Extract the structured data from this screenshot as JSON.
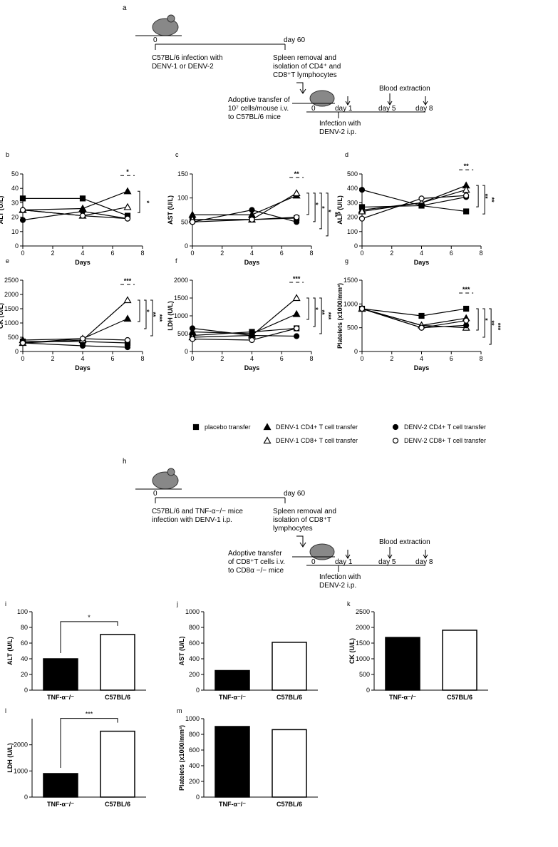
{
  "diagram_a": {
    "label": "a",
    "t0": "0",
    "t60": "day 60",
    "inf1": "C57BL/6 infection with",
    "inf2": "DENV-1 or DENV-2",
    "sp1": "Spleen removal and",
    "sp2": "isolation of  CD4⁺ and",
    "sp3": "CD8⁺T lymphocytes",
    "ad1": "Adoptive transfer of",
    "ad2": "10⁷ cells/mouse i.v.",
    "ad3": "to C57BL/6 mice",
    "blood": "Blood extraction",
    "d0": "0",
    "d1": "day 1",
    "d5": "day 5",
    "d8": "day 8",
    "in1": "Infection with",
    "in2": "DENV-2 i.p."
  },
  "diagram_h": {
    "label": "h",
    "t0": "0",
    "t60": "day 60",
    "inf1": "C57BL/6 and TNF-α−/− mice",
    "inf2": "infection with DENV-1 i.p.",
    "sp1": "Spleen removal and",
    "sp2": "isolation of  CD8⁺T",
    "sp3": "lymphocytes",
    "ad1": "Adoptive transfer",
    "ad2": "of CD8⁺T cells i.v.",
    "ad3": "to CD8α −/− mice",
    "blood": "Blood extraction",
    "d0": "0",
    "d1": "day 1",
    "d5": "day 5",
    "d8": "day 8",
    "in1": "Infection with",
    "in2": "DENV-2 i.p."
  },
  "legend": [
    {
      "name": "placebo transfer",
      "marker": "square"
    },
    {
      "name": "DENV-1 CD4+ T cell transfer",
      "marker": "triangle"
    },
    {
      "name": "DENV-1 CD8+ T cell transfer",
      "marker": "triangle-open"
    },
    {
      "name": "DENV-2 CD4+ T cell transfer",
      "marker": "circle"
    },
    {
      "name": "DENV-2 CD8+ T cell transfer",
      "marker": "circle-open"
    }
  ],
  "chart_data": [
    {
      "type": "line",
      "panel": "b",
      "ylabel": "ALT (U/L)",
      "xlabel": "Days",
      "x": [
        0,
        4,
        7
      ],
      "xlim": [
        0,
        8
      ],
      "xticks": [
        0,
        2,
        4,
        6,
        8
      ],
      "ylim": [
        0,
        50
      ],
      "yticks": [
        0,
        10,
        20,
        30,
        40,
        50
      ],
      "series": [
        {
          "values": [
            33,
            33,
            21
          ]
        },
        {
          "values": [
            25,
            26,
            38
          ]
        },
        {
          "values": [
            25,
            21,
            27
          ]
        },
        {
          "values": [
            18,
            24,
            19
          ]
        },
        {
          "values": [
            25,
            21,
            19
          ]
        }
      ],
      "annotations": [
        "*",
        "*"
      ]
    },
    {
      "type": "line",
      "panel": "c",
      "ylabel": "AST (U/L)",
      "xlabel": "Days",
      "x": [
        0,
        4,
        7
      ],
      "xlim": [
        0,
        8
      ],
      "xticks": [
        0,
        2,
        4,
        6,
        8
      ],
      "ylim": [
        0,
        150
      ],
      "yticks": [
        0,
        50,
        100,
        150
      ],
      "series": [
        {
          "values": [
            55,
            55,
            58
          ]
        },
        {
          "values": [
            65,
            65,
            105
          ]
        },
        {
          "values": [
            55,
            55,
            110
          ]
        },
        {
          "values": [
            50,
            75,
            50
          ]
        },
        {
          "values": [
            50,
            55,
            60
          ]
        }
      ],
      "annotations": [
        "**",
        "*",
        "*",
        "*",
        "**"
      ]
    },
    {
      "type": "line",
      "panel": "d",
      "ylabel": "ALP (U/L)",
      "xlabel": "Days",
      "x": [
        0,
        4,
        7
      ],
      "xlim": [
        0,
        8
      ],
      "xticks": [
        0,
        2,
        4,
        6,
        8
      ],
      "ylim": [
        0,
        500
      ],
      "yticks": [
        0,
        100,
        200,
        300,
        400,
        500
      ],
      "series": [
        {
          "values": [
            270,
            280,
            240
          ]
        },
        {
          "values": [
            250,
            300,
            420
          ]
        },
        {
          "values": [
            240,
            300,
            390
          ]
        },
        {
          "values": [
            390,
            280,
            340
          ]
        },
        {
          "values": [
            190,
            330,
            350
          ]
        }
      ],
      "annotations": [
        "**",
        "**",
        "**"
      ]
    },
    {
      "type": "line",
      "panel": "e",
      "ylabel": "CK (U/L)",
      "xlabel": "Days",
      "x": [
        0,
        4,
        7
      ],
      "xlim": [
        0,
        8
      ],
      "xticks": [
        0,
        2,
        4,
        6,
        8
      ],
      "ylim": [
        0,
        2500
      ],
      "yticks": [
        0,
        500,
        1000,
        1500,
        2000,
        2500
      ],
      "series": [
        {
          "values": [
            350,
            350,
            300
          ]
        },
        {
          "values": [
            400,
            450,
            1150
          ]
        },
        {
          "values": [
            300,
            400,
            1800
          ]
        },
        {
          "values": [
            300,
            200,
            150
          ]
        },
        {
          "values": [
            300,
            450,
            400
          ]
        }
      ],
      "annotations": [
        "***",
        "*",
        "**",
        "***"
      ]
    },
    {
      "type": "line",
      "panel": "f",
      "ylabel": "LDH (U/L)",
      "xlabel": "Days",
      "x": [
        0,
        4,
        7
      ],
      "xlim": [
        0,
        8
      ],
      "xticks": [
        0,
        2,
        4,
        6,
        8
      ],
      "ylim": [
        0,
        2000
      ],
      "yticks": [
        0,
        500,
        1000,
        1500,
        2000
      ],
      "series": [
        {
          "values": [
            450,
            550,
            650
          ]
        },
        {
          "values": [
            550,
            500,
            1050
          ]
        },
        {
          "values": [
            400,
            450,
            1500
          ]
        },
        {
          "values": [
            650,
            450,
            430
          ]
        },
        {
          "values": [
            350,
            320,
            650
          ]
        }
      ],
      "annotations": [
        "***",
        "*",
        "**",
        "***"
      ]
    },
    {
      "type": "line",
      "panel": "g",
      "ylabel": "Platelets (x1000/mm³)",
      "xlabel": "Days",
      "x": [
        0,
        4,
        7
      ],
      "xlim": [
        0,
        8
      ],
      "xticks": [
        0,
        2,
        4,
        6,
        8
      ],
      "ylim": [
        0,
        1500
      ],
      "yticks": [
        0,
        500,
        1000,
        1500
      ],
      "series": [
        {
          "values": [
            900,
            750,
            900
          ]
        },
        {
          "values": [
            900,
            550,
            700
          ]
        },
        {
          "values": [
            900,
            550,
            500
          ]
        },
        {
          "values": [
            900,
            500,
            550
          ]
        },
        {
          "values": [
            900,
            500,
            650
          ]
        }
      ],
      "annotations": [
        "***",
        "*",
        "**",
        "***"
      ]
    },
    {
      "type": "bar",
      "panel": "i",
      "ylabel": "ALT (U/L)",
      "categories": [
        "TNF-α⁻/⁻",
        "C57BL/6"
      ],
      "values": [
        40,
        71
      ],
      "colors": [
        "#000000",
        "#ffffff"
      ],
      "ylim": [
        0,
        100
      ],
      "yticks": [
        0,
        20,
        40,
        60,
        80,
        100
      ],
      "annotations": [
        "*"
      ]
    },
    {
      "type": "bar",
      "panel": "j",
      "ylabel": "AST (U/L)",
      "categories": [
        "TNF-α⁻/⁻",
        "C57BL/6"
      ],
      "values": [
        250,
        610
      ],
      "colors": [
        "#000000",
        "#ffffff"
      ],
      "ylim": [
        0,
        1000
      ],
      "yticks": [
        0,
        200,
        400,
        600,
        800,
        1000
      ]
    },
    {
      "type": "bar",
      "panel": "k",
      "ylabel": "CK (U/L)",
      "categories": [
        "TNF-α⁻/⁻",
        "C57BL/6"
      ],
      "values": [
        1680,
        1910
      ],
      "colors": [
        "#000000",
        "#ffffff"
      ],
      "ylim": [
        0,
        2500
      ],
      "yticks": [
        0,
        500,
        1000,
        1500,
        2000,
        2500
      ]
    },
    {
      "type": "bar",
      "panel": "l",
      "ylabel": "LDH (U/L)",
      "categories": [
        "TNF-α⁻/⁻",
        "C57BL/6"
      ],
      "values": [
        900,
        2520
      ],
      "colors": [
        "#000000",
        "#ffffff"
      ],
      "ylim": [
        0,
        3000
      ],
      "yticks": [
        0,
        1000,
        2000
      ],
      "annotations": [
        "***"
      ]
    },
    {
      "type": "bar",
      "panel": "m",
      "ylabel": "Platelets (x1000/mm³)",
      "categories": [
        "TNF-α⁻/⁻",
        "C57BL/6"
      ],
      "values": [
        900,
        860
      ],
      "colors": [
        "#000000",
        "#ffffff"
      ],
      "ylim": [
        0,
        1000
      ],
      "yticks": [
        0,
        200,
        400,
        600,
        800,
        1000
      ]
    }
  ]
}
